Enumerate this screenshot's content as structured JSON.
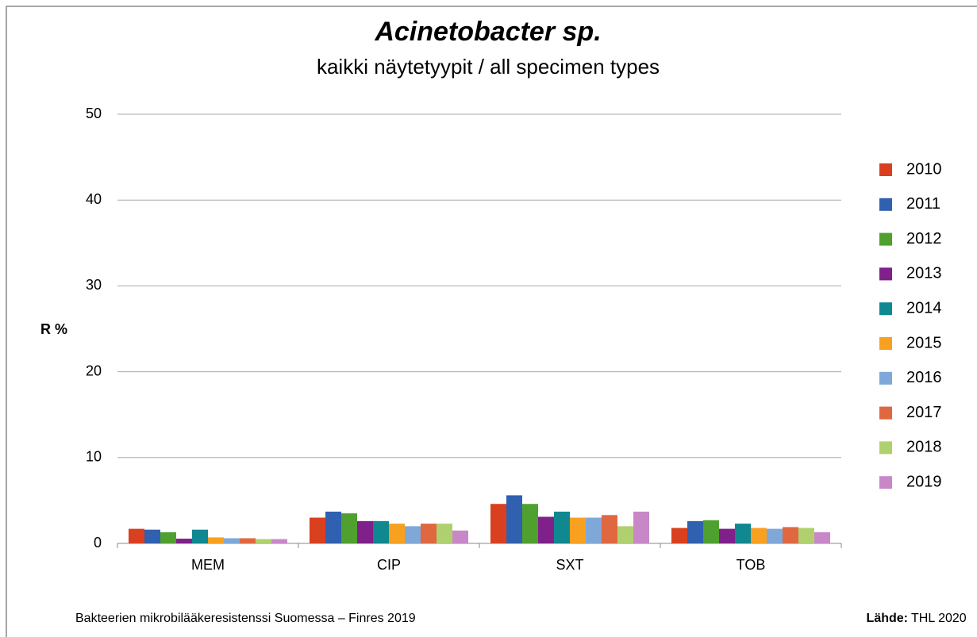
{
  "chart_data": {
    "type": "bar",
    "title": "Acinetobacter sp.",
    "subtitle": "kaikki näytetyypit / all specimen types",
    "y_label": "R %",
    "footer": "Bakteerien mikrobilääkeresistenssi Suomessa – Finres 2019",
    "source_label": "Lähde:",
    "source": "THL 2020",
    "categories": [
      "MEM",
      "CIP",
      "SXT",
      "TOB"
    ],
    "ylim": [
      0,
      50
    ],
    "yticks": [
      0,
      10,
      20,
      30,
      40,
      50
    ],
    "grid": true,
    "legend": "right",
    "series": [
      {
        "name": "2010",
        "color": "#d9401f",
        "values": [
          1.7,
          3.0,
          4.6,
          1.8
        ]
      },
      {
        "name": "2011",
        "color": "#3060b0",
        "values": [
          1.6,
          3.7,
          5.6,
          2.6
        ]
      },
      {
        "name": "2012",
        "color": "#50a030",
        "values": [
          1.3,
          3.5,
          4.6,
          2.7
        ]
      },
      {
        "name": "2013",
        "color": "#80208a",
        "values": [
          0.55,
          2.6,
          3.1,
          1.7
        ]
      },
      {
        "name": "2014",
        "color": "#108890",
        "values": [
          1.6,
          2.6,
          3.7,
          2.3
        ]
      },
      {
        "name": "2015",
        "color": "#f8a020",
        "values": [
          0.7,
          2.3,
          3.0,
          1.8
        ]
      },
      {
        "name": "2016",
        "color": "#7fa8d8",
        "values": [
          0.6,
          2.0,
          3.0,
          1.7
        ]
      },
      {
        "name": "2017",
        "color": "#e06840",
        "values": [
          0.6,
          2.3,
          3.3,
          1.9
        ]
      },
      {
        "name": "2018",
        "color": "#b0d070",
        "values": [
          0.5,
          2.3,
          2.0,
          1.8
        ]
      },
      {
        "name": "2019",
        "color": "#c888c8",
        "values": [
          0.5,
          1.5,
          3.7,
          1.3
        ]
      }
    ]
  }
}
